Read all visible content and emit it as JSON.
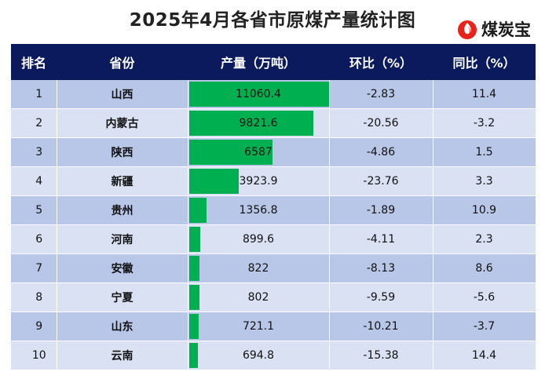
{
  "title": "2025年4月各省市原煤产量统计图",
  "brand": {
    "name": "煤炭宝",
    "color": "#e8231c"
  },
  "colors": {
    "header": "#0a1a5c",
    "bar": "#00b050",
    "row_odd": "#b8c6e8",
    "row_even": "#d9e1f3"
  },
  "table": {
    "headers": [
      "排名",
      "省份",
      "产量（万吨）",
      "环比（%）",
      "同比（%）"
    ]
  },
  "chart_data": {
    "type": "table",
    "title": "2025年4月各省市原煤产量统计图",
    "columns": [
      "排名",
      "省份",
      "产量（万吨）",
      "环比（%）",
      "同比（%）"
    ],
    "bar_column": "产量（万吨）",
    "bar_max": 11060.4,
    "rows": [
      {
        "rank": "1",
        "province": "山西",
        "output": 11060.4,
        "output_label": "11060.4",
        "mom": "-2.83",
        "yoy": "11.4"
      },
      {
        "rank": "2",
        "province": "内蒙古",
        "output": 9821.6,
        "output_label": "9821.6",
        "mom": "-20.56",
        "yoy": "-3.2"
      },
      {
        "rank": "3",
        "province": "陕西",
        "output": 6587,
        "output_label": "6587",
        "mom": "-4.86",
        "yoy": "1.5"
      },
      {
        "rank": "4",
        "province": "新疆",
        "output": 3923.9,
        "output_label": "3923.9",
        "mom": "-23.76",
        "yoy": "3.3"
      },
      {
        "rank": "5",
        "province": "贵州",
        "output": 1356.8,
        "output_label": "1356.8",
        "mom": "-1.89",
        "yoy": "10.9"
      },
      {
        "rank": "6",
        "province": "河南",
        "output": 899.6,
        "output_label": "899.6",
        "mom": "-4.11",
        "yoy": "2.3"
      },
      {
        "rank": "7",
        "province": "安徽",
        "output": 822,
        "output_label": "822",
        "mom": "-8.13",
        "yoy": "8.6"
      },
      {
        "rank": "8",
        "province": "宁夏",
        "output": 802,
        "output_label": "802",
        "mom": "-9.59",
        "yoy": "-5.6"
      },
      {
        "rank": "9",
        "province": "山东",
        "output": 721.1,
        "output_label": "721.1",
        "mom": "-10.21",
        "yoy": "-3.7"
      },
      {
        "rank": "10",
        "province": "云南",
        "output": 694.8,
        "output_label": "694.8",
        "mom": "-15.38",
        "yoy": "14.4"
      }
    ]
  }
}
